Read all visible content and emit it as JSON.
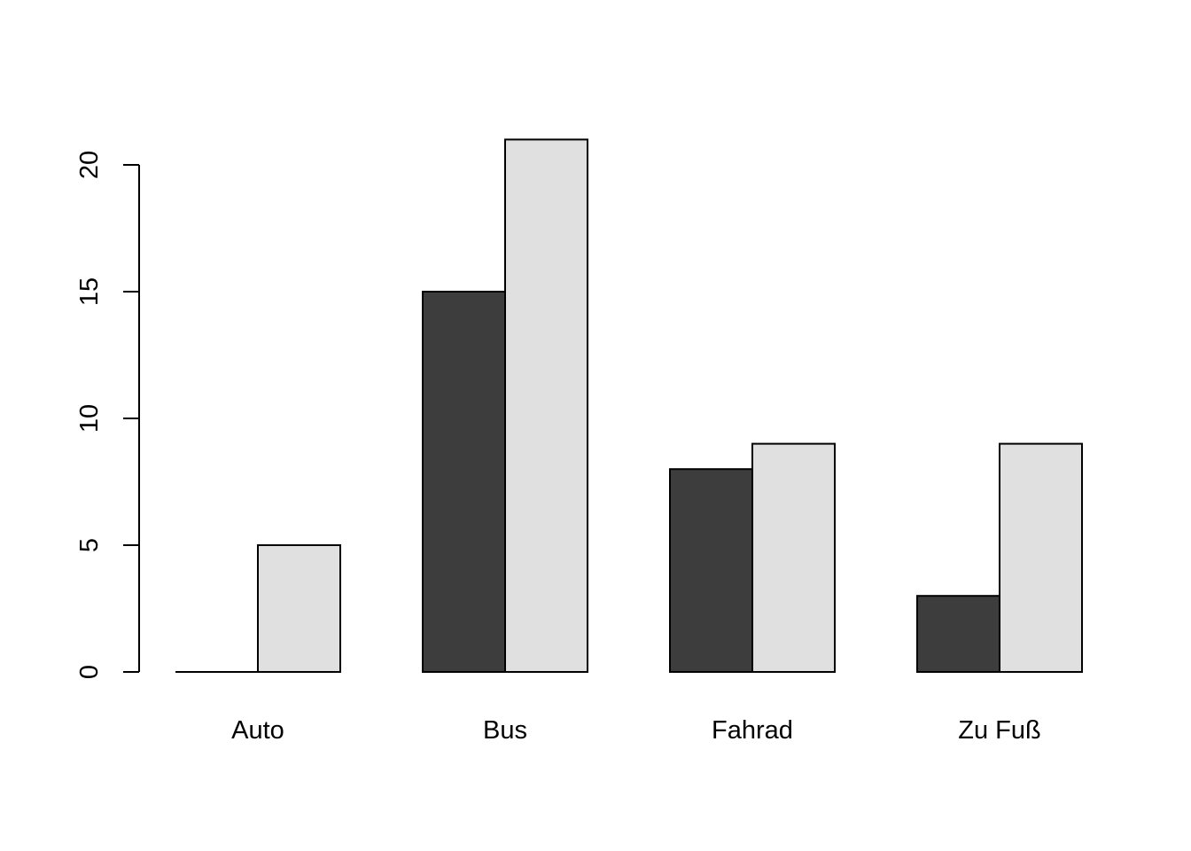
{
  "chart_data": {
    "type": "bar",
    "grouped": true,
    "categories": [
      "Auto",
      "Bus",
      "Fahrad",
      "Zu Fuß"
    ],
    "series": [
      {
        "values": [
          0,
          15,
          8,
          3
        ],
        "color": "#3d3d3d"
      },
      {
        "values": [
          5,
          21,
          9,
          9
        ],
        "color": "#e0e0e0"
      }
    ],
    "y_ticks": [
      0,
      5,
      10,
      15,
      20
    ],
    "ylim": [
      0,
      21
    ],
    "title": "",
    "xlabel": "",
    "ylabel": "",
    "grid": false,
    "legend": "none"
  }
}
